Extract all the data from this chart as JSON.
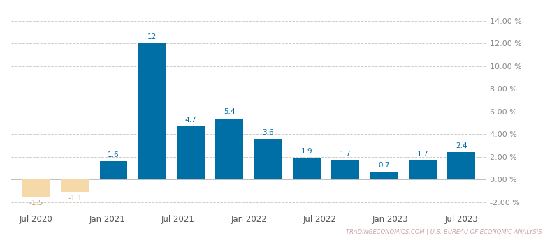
{
  "x_labels": [
    "Jul 2020",
    "Jan 2021",
    "Jul 2021",
    "Jan 2022",
    "Jul 2022",
    "Jan 2023",
    "Jul 2023"
  ],
  "values": [
    -1.5,
    -1.1,
    1.6,
    12.0,
    4.7,
    5.4,
    3.6,
    1.9,
    1.7,
    0.7,
    1.7,
    2.4
  ],
  "bar_color_positive": "#006fa6",
  "bar_color_negative": "#f5d9a8",
  "background_color": "#ffffff",
  "grid_color": "#cccccc",
  "yticks": [
    -2,
    0,
    2,
    4,
    6,
    8,
    10,
    12,
    14
  ],
  "ytick_labels": [
    "-2.00 %",
    "0.00 %",
    "2.00 %",
    "4.00 %",
    "6.00 %",
    "8.00 %",
    "10.00 %",
    "12.00 %",
    "14.00 %"
  ],
  "ylim": [
    -2.8,
    15.2
  ],
  "annotation_color_positive": "#006fa6",
  "annotation_color_negative": "#c8a060",
  "watermark": "TRADINGECONOMICS.COM | U.S. BUREAU OF ECONOMIC ANALYSIS",
  "watermark_color": "#c8a8a8"
}
